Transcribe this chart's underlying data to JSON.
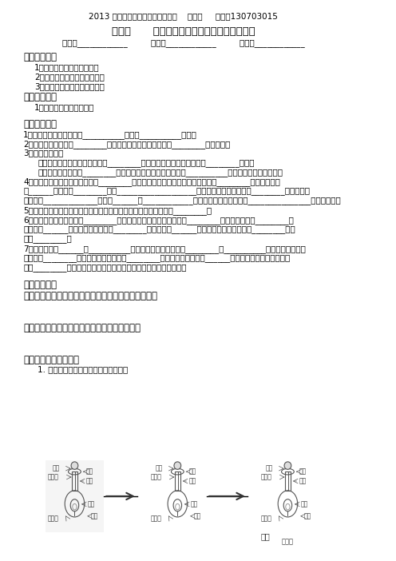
{
  "header": "2013 学年七年级（下）科学导学稿    新授课     编号：130703015",
  "title": "第五节      植物生殖方式的多样性（第一课时）",
  "class_line": "班级：____________         小组：____________         姓名：____________",
  "section1_title": "【学习目标】",
  "section1_items": [
    "1、知道被子植物的有性生殖",
    "2、知道传粉及传粉方式和途径",
    "3、知道被子植物的受精与发育"
  ],
  "section2_title": "【重点难点】",
  "section2_items": [
    "1、被子植物的受精与发育"
  ],
  "section3_title": "【课前预习】",
  "section3_items": [
    "1、植物的生殖方式可分为__________生殖和__________生殖。",
    "2、传粉是指雄蕊中的________从花药中散出来，落到雌蕊的________上的过程。",
    "3、传粉的方式：",
    "    自花传粉：花粉落在同一朵花的________上的传粉方式。豌豆是典型的________传粉。",
    "    异花传粉：花粉落到________花的柱头上的传粉方式。其中，__________传粉是普遍的传粉方式。",
    "4、异花传粉的途径：虫媒花，靠________传粉；这种花的特点是：花粉较黏，有________的花被、芳香",
    "的______、甜美的________。像___________________等植物的花。风媒花，靠________传粉；特点",
    "是：花粉_____________、柱头______或____________、并且伸出花瓣外面。像_______________等植物的花。",
    "5、人工授粉：为了提高农作物的产量，人们常用人工的方法来传播________。",
    "6、完成传粉后，花粉受到________分泌的黏液的刺激，就萌发形成________；穿过柱头伸入________，",
    "一直到达______。同时花粉管内形成________。精子到达______后，一个精子与胚珠内的________融合",
    "形成________。",
    "7、子房发育成______，__________发育成果皮，胚珠发育成________，__________发育成种皮，受精",
    "卵发育成________。子房内如果只有一个________，受精后果实内只有______种子，如桃子等。子房内如",
    "果有________胚珠，受精后果实内可以形成许多粒种子，如西瓜等。"
  ],
  "section4_title": "【合作学习】",
  "section4_items": [
    "一、说说虫媒花的特点以及昆虫是怎样帮助花传粉的。",
    "",
    "二、说说风媒花的特点对植物传粉有什么作用。",
    "",
    "三、受精和果实的形成",
    "    1. 结合受精过程示意图，分析受精过程"
  ],
  "bg_color": "#ffffff",
  "text_color": "#000000",
  "font_size_header": 7.5,
  "font_size_title": 9.5,
  "font_size_body": 7.5,
  "font_size_section": 8.5
}
